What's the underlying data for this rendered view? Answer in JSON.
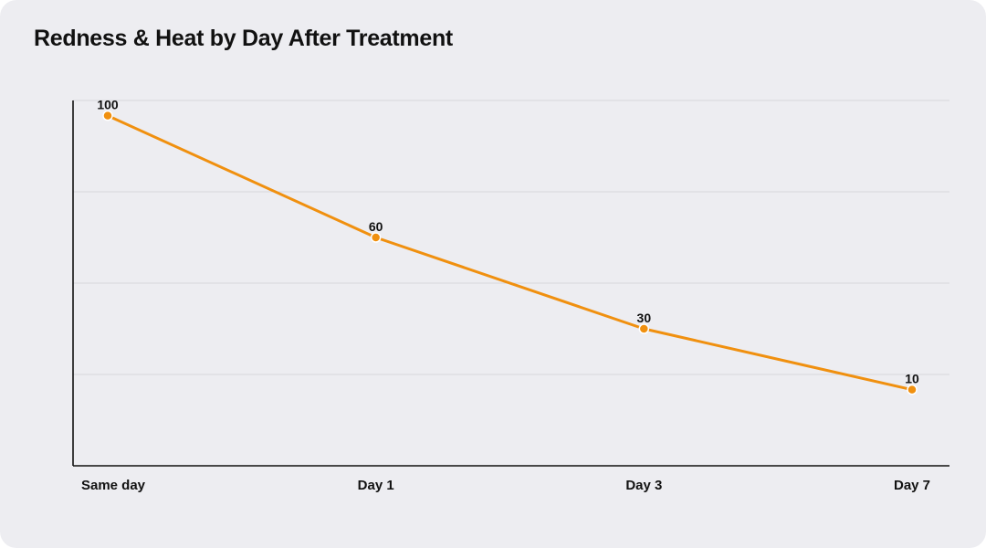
{
  "title": "Redness & Heat by Day After Treatment",
  "colors": {
    "background": "#ededf1",
    "line": "#f0900f",
    "marker": "#f0900f",
    "grid": "#d6d6dc",
    "axis": "#111111"
  },
  "chart_data": {
    "type": "line",
    "title": "Redness & Heat by Day After Treatment",
    "xlabel": "",
    "ylabel": "",
    "categories": [
      "Same day",
      "Day 1",
      "Day 3",
      "Day 7"
    ],
    "series": [
      {
        "values": [
          100,
          60,
          30,
          10
        ]
      }
    ],
    "data_labels": [
      "100",
      "60",
      "30",
      "10"
    ],
    "ylim": [
      -15,
      105
    ],
    "y_ticks_shown": false,
    "grid": true,
    "legend": "none"
  }
}
